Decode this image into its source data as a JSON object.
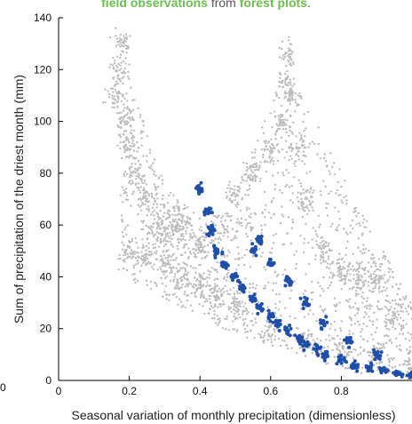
{
  "caption": {
    "part1": "field observations",
    "part2": " from ",
    "part3": "forest plots",
    "part4": "."
  },
  "colors": {
    "grey_points": "#bdbdbd",
    "blue_points": "#1f4fa8",
    "caption_highlight": "#6cbf4f"
  },
  "chart_data": {
    "type": "scatter",
    "title": "",
    "xlabel": "Seasonal variation of monthly precipitation (dimensionless)",
    "ylabel": "Sum of precipitation of the driest month (mm)",
    "xlim": [
      0,
      1
    ],
    "ylim": [
      0,
      140
    ],
    "xticks": [
      0,
      0.2,
      0.4,
      0.6,
      0.8
    ],
    "xtick_labels": [
      "0",
      "0.2",
      "0.4",
      "0.6",
      "0.8"
    ],
    "yticks": [
      0,
      20,
      40,
      60,
      80,
      100,
      120,
      140
    ],
    "ytick_labels": [
      "0",
      "20",
      "40",
      "60",
      "80",
      "100",
      "120",
      "140"
    ],
    "extra_left_label": "0",
    "grid": false,
    "series": [
      {
        "color": "#bdbdbd",
        "description_points": [
          [
            0.18,
            130
          ],
          [
            0.17,
            120
          ],
          [
            0.16,
            110
          ],
          [
            0.19,
            100
          ],
          [
            0.2,
            90
          ],
          [
            0.22,
            80
          ],
          [
            0.25,
            70
          ],
          [
            0.28,
            60
          ],
          [
            0.3,
            55
          ],
          [
            0.33,
            62
          ],
          [
            0.35,
            58
          ],
          [
            0.4,
            52
          ],
          [
            0.45,
            60
          ],
          [
            0.5,
            72
          ],
          [
            0.55,
            80
          ],
          [
            0.6,
            88
          ],
          [
            0.63,
            100
          ],
          [
            0.64,
            115
          ],
          [
            0.65,
            125
          ],
          [
            0.66,
            110
          ],
          [
            0.68,
            90
          ],
          [
            0.7,
            70
          ],
          [
            0.75,
            50
          ],
          [
            0.8,
            42
          ],
          [
            0.85,
            40
          ],
          [
            0.9,
            38
          ],
          [
            0.95,
            25
          ],
          [
            1.0,
            5
          ],
          [
            0.9,
            10
          ],
          [
            0.8,
            12
          ],
          [
            0.7,
            15
          ],
          [
            0.6,
            20
          ],
          [
            0.5,
            28
          ],
          [
            0.45,
            33
          ],
          [
            0.4,
            38
          ],
          [
            0.35,
            40
          ],
          [
            0.3,
            46
          ],
          [
            0.25,
            48
          ],
          [
            0.2,
            50
          ]
        ]
      },
      {
        "color": "#1f4fa8",
        "description_points": [
          [
            0.4,
            74
          ],
          [
            0.42,
            65
          ],
          [
            0.43,
            58
          ],
          [
            0.45,
            50
          ],
          [
            0.47,
            45
          ],
          [
            0.5,
            40
          ],
          [
            0.52,
            36
          ],
          [
            0.55,
            32
          ],
          [
            0.57,
            28
          ],
          [
            0.6,
            25
          ],
          [
            0.62,
            22
          ],
          [
            0.65,
            19
          ],
          [
            0.68,
            16
          ],
          [
            0.7,
            14
          ],
          [
            0.73,
            12
          ],
          [
            0.76,
            10
          ],
          [
            0.8,
            8
          ],
          [
            0.84,
            6
          ],
          [
            0.88,
            5
          ],
          [
            0.92,
            4
          ],
          [
            0.96,
            3
          ],
          [
            1.0,
            2
          ],
          [
            0.57,
            54
          ],
          [
            0.55,
            50
          ],
          [
            0.6,
            45
          ],
          [
            0.65,
            38
          ],
          [
            0.7,
            30
          ],
          [
            0.75,
            22
          ],
          [
            0.82,
            15
          ],
          [
            0.9,
            10
          ]
        ]
      }
    ]
  }
}
